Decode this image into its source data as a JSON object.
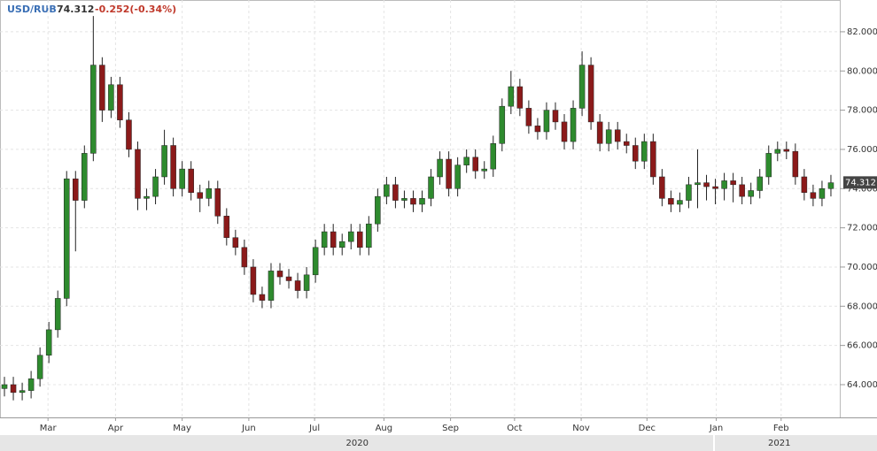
{
  "chart_data": {
    "type": "candlestick",
    "symbol": "USD/RUB",
    "last_price": 74.312,
    "change": "-0.252(-0.34%)",
    "up_color": "#2e8b2e",
    "down_color": "#8b1a1a",
    "grid": true,
    "xlim": [
      -0.5,
      94
    ],
    "ylim": [
      62.33,
      83.62
    ],
    "yticks": [
      {
        "value": 64,
        "label": "64.000"
      },
      {
        "value": 66,
        "label": "66.000"
      },
      {
        "value": 68,
        "label": "68.000"
      },
      {
        "value": 70,
        "label": "70.000"
      },
      {
        "value": 72,
        "label": "72.000"
      },
      {
        "value": 74,
        "label": "74.000"
      },
      {
        "value": 76,
        "label": "76.000"
      },
      {
        "value": 78,
        "label": "78.000"
      },
      {
        "value": 80,
        "label": "80.000"
      },
      {
        "value": 82,
        "label": "82.000"
      }
    ],
    "xticks": [
      {
        "value": 4.9,
        "label": "Mar"
      },
      {
        "value": 12.5,
        "label": "Apr"
      },
      {
        "value": 20,
        "label": "May"
      },
      {
        "value": 27.5,
        "label": "Jun"
      },
      {
        "value": 34.9,
        "label": "Jul"
      },
      {
        "value": 42.7,
        "label": "Aug"
      },
      {
        "value": 50.2,
        "label": "Sep"
      },
      {
        "value": 57.4,
        "label": "Oct"
      },
      {
        "value": 64.9,
        "label": "Nov"
      },
      {
        "value": 72.3,
        "label": "Dec"
      },
      {
        "value": 80.1,
        "label": "Jan"
      },
      {
        "value": 87.4,
        "label": "Feb"
      }
    ],
    "years": [
      {
        "value": 39.7,
        "label": "2020"
      },
      {
        "value": 87.2,
        "label": "2021"
      }
    ],
    "open": [
      63.8,
      64.0,
      63.6,
      63.7,
      64.3,
      65.5,
      66.8,
      68.4,
      74.5,
      73.4,
      75.8,
      80.3,
      78.0,
      79.3,
      77.5,
      76.0,
      73.5,
      73.6,
      74.6,
      76.2,
      74.0,
      75.0,
      73.8,
      73.5,
      74.0,
      72.6,
      71.5,
      71.0,
      70.0,
      68.6,
      68.3,
      69.8,
      69.5,
      69.3,
      68.8,
      69.6,
      71.0,
      71.8,
      71.0,
      71.3,
      71.8,
      71.0,
      72.2,
      73.6,
      74.2,
      73.4,
      73.5,
      73.2,
      73.5,
      74.6,
      75.5,
      74.0,
      75.2,
      75.6,
      74.9,
      75.0,
      76.3,
      78.2,
      79.2,
      78.1,
      77.2,
      76.9,
      78.0,
      77.4,
      76.4,
      78.1,
      80.3,
      77.4,
      76.3,
      77.0,
      76.4,
      76.2,
      75.4,
      76.4,
      74.6,
      73.5,
      73.2,
      73.4,
      74.2,
      74.3,
      74.1,
      74.0,
      74.4,
      74.2,
      73.6,
      73.9,
      74.6,
      75.8,
      76.0,
      75.9,
      74.6,
      73.8,
      73.5,
      74.0
    ],
    "high": [
      64.4,
      64.4,
      64.1,
      64.7,
      65.9,
      67.2,
      68.8,
      74.9,
      74.9,
      76.2,
      82.8,
      80.7,
      79.7,
      79.7,
      77.9,
      76.4,
      74.0,
      75.0,
      77.0,
      76.6,
      75.4,
      75.4,
      74.2,
      74.4,
      74.4,
      73.0,
      71.9,
      71.4,
      70.4,
      69.0,
      70.2,
      70.2,
      69.9,
      69.7,
      70.0,
      71.4,
      72.2,
      72.2,
      71.7,
      72.2,
      72.2,
      72.6,
      74.0,
      74.6,
      74.6,
      73.9,
      73.9,
      73.9,
      75.0,
      75.9,
      75.9,
      75.6,
      76.0,
      76.0,
      75.4,
      76.7,
      78.6,
      80.0,
      79.6,
      78.5,
      77.6,
      78.4,
      78.4,
      77.8,
      78.5,
      81.0,
      80.7,
      77.8,
      77.4,
      77.4,
      76.8,
      76.6,
      76.8,
      76.8,
      75.0,
      73.9,
      73.8,
      74.6,
      76.0,
      74.7,
      74.5,
      74.8,
      74.8,
      74.6,
      74.3,
      75.0,
      76.2,
      76.4,
      76.4,
      76.3,
      75.0,
      74.2,
      74.4,
      74.7
    ],
    "low": [
      63.4,
      63.2,
      63.2,
      63.3,
      63.9,
      65.1,
      66.4,
      68.0,
      70.8,
      73.0,
      75.4,
      77.4,
      77.6,
      77.1,
      75.6,
      72.9,
      72.9,
      73.2,
      74.2,
      73.6,
      73.6,
      73.4,
      72.8,
      73.1,
      72.2,
      71.1,
      70.6,
      69.6,
      68.2,
      67.9,
      67.9,
      69.1,
      68.9,
      68.4,
      68.4,
      69.2,
      70.6,
      70.6,
      70.6,
      70.9,
      70.6,
      70.6,
      71.8,
      73.2,
      73.0,
      73.0,
      72.8,
      72.8,
      73.1,
      74.2,
      73.6,
      73.6,
      74.8,
      74.5,
      74.5,
      74.6,
      75.9,
      77.8,
      77.7,
      76.8,
      76.5,
      76.5,
      77.0,
      76.0,
      76.0,
      77.7,
      77.0,
      75.9,
      75.9,
      76.0,
      75.8,
      75.0,
      75.0,
      74.2,
      73.1,
      72.8,
      72.8,
      73.0,
      73.0,
      73.4,
      73.2,
      73.4,
      73.3,
      73.2,
      73.2,
      73.5,
      74.2,
      75.4,
      75.5,
      74.2,
      73.4,
      73.1,
      73.1,
      73.6
    ],
    "close": [
      64.0,
      63.6,
      63.7,
      64.3,
      65.5,
      66.8,
      68.4,
      74.5,
      73.4,
      75.8,
      80.3,
      78.0,
      79.3,
      77.5,
      76.0,
      73.5,
      73.6,
      74.6,
      76.2,
      74.0,
      75.0,
      73.8,
      73.5,
      74.0,
      72.6,
      71.5,
      71.0,
      70.0,
      68.6,
      68.3,
      69.8,
      69.5,
      69.3,
      68.8,
      69.6,
      71.0,
      71.8,
      71.0,
      71.3,
      71.8,
      71.0,
      72.2,
      73.6,
      74.2,
      73.4,
      73.5,
      73.2,
      73.5,
      74.6,
      75.5,
      74.0,
      75.2,
      75.6,
      74.9,
      75.0,
      76.3,
      78.2,
      79.2,
      78.1,
      77.2,
      76.9,
      78.0,
      77.4,
      76.4,
      78.1,
      80.3,
      77.4,
      76.3,
      77.0,
      76.4,
      76.2,
      75.4,
      76.4,
      74.6,
      73.5,
      73.2,
      73.4,
      74.2,
      74.3,
      74.1,
      74.0,
      74.4,
      74.2,
      73.6,
      73.9,
      74.6,
      75.8,
      76.0,
      75.9,
      74.6,
      73.8,
      73.5,
      74.0,
      74.3
    ]
  }
}
